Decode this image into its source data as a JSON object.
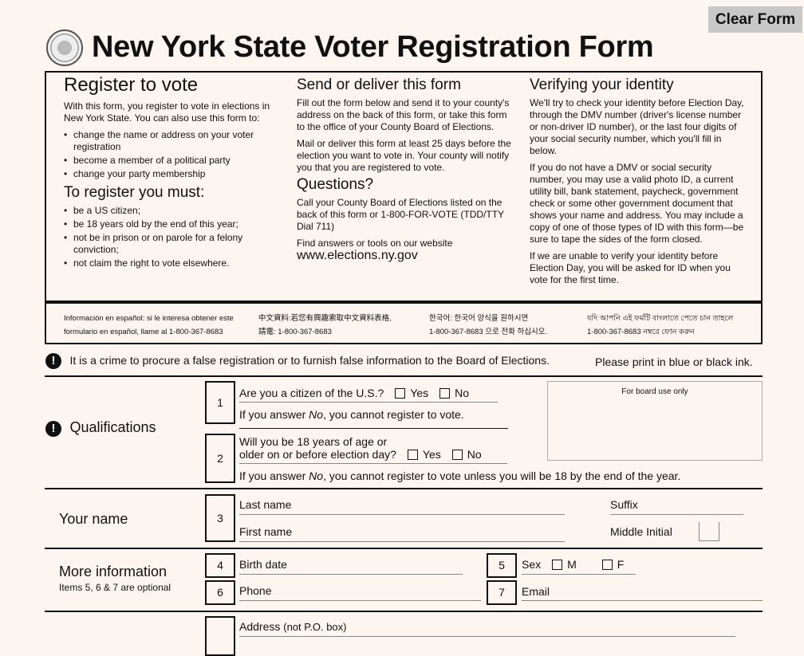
{
  "clear_form": "Clear Form",
  "title": "New York State Voter Registration Form",
  "col1": {
    "h": "Register to vote",
    "p": "With this form, you register to vote in elections in New York State. You can also use this form to:",
    "items": [
      "change the name or address on your voter registration",
      "become a member of a political party",
      "change your party membership"
    ],
    "h2": "To register you must:",
    "items2": [
      "be a US citizen;",
      "be 18 years old by the end of this year;",
      "not be in prison or on parole for a felony conviction;",
      "not claim the right to vote elsewhere."
    ]
  },
  "col2": {
    "h": "Send or deliver this form",
    "p1": "Fill out the form below and send it to your county's address on the back of this form, or take this form to the office of your County Board of Elections.",
    "p2": "Mail or deliver this form at least 25 days before the election you want to vote in. Your county will notify you that you are registered to vote.",
    "h2": "Questions?",
    "p3": "Call your County Board of Elections listed on the back of this form or 1-800-FOR-VOTE    (TDD/TTY Dial 711)",
    "p4": "Find answers or tools on our website",
    "web": "www.elections.ny.gov"
  },
  "col3": {
    "h": "Verifying your identity",
    "p1": "We'll try to check your identity before Election Day, through the DMV number (driver's license number or non-driver ID number), or the last four digits of your social security number, which you'll fill in below.",
    "p2": "If you do not have a DMV or social security number, you may use a valid photo ID, a current utility bill, bank statement, paycheck, government check or some other government document that shows your name and address. You may include a copy of one of those types of ID with this form—be sure to tape the sides of the form closed.",
    "p3": "If we are unable to verify your identity before Election Day, you will be asked for ID when you vote for the first time."
  },
  "lang": {
    "es1": "Información en español: si le interesa obtener este",
    "es2": "formulario en español, llame al 1-800-367-8683",
    "zh1": "中文資料:若您有興趣索取中文資料表格,",
    "zh2": "請電: 1-800-367-8683",
    "ko1": "한국어: 한국어 양식을 원하시면",
    "ko2": "1-800-367-8683 으로 전화 하십시오.",
    "bn1": "যদি আপনি এই ফর্মটি বাংলাতে পেতে চান তাহলে",
    "bn2": "1-800-367-8683 নম্বরে ফোন করুন"
  },
  "warning": "It is a crime to procure a false registration or to furnish false information to the Board of Elections.",
  "ink": "Please print in blue or black ink.",
  "qual": {
    "label": "Qualifications",
    "q1_num": "1",
    "q1": "Are you a citizen of the U.S.?",
    "q1_note_pre": "If you answer ",
    "q1_note_no": "No",
    "q1_note_post": ", you cannot register to vote.",
    "q2_num": "2",
    "q2a": "Will you be 18 years of age or",
    "q2b": "older on or before election day?",
    "q2_note_pre": "If you answer ",
    "q2_note_post": ", you cannot register to vote unless you will be 18 by the end of the year.",
    "yes": "Yes",
    "no": "No",
    "board": "For board use only"
  },
  "name": {
    "label": "Your name",
    "num": "3",
    "last": "Last name",
    "first": "First name",
    "suffix": "Suffix",
    "middle": "Middle Initial"
  },
  "more": {
    "label": "More information",
    "sub": "Items 5, 6 & 7 are optional",
    "n4": "4",
    "birth": "Birth date",
    "n5": "5",
    "sex": "Sex",
    "m": "M",
    "f": "F",
    "n6": "6",
    "phone": "Phone",
    "n7": "7",
    "email": "Email"
  },
  "address": {
    "label": "Address",
    "note": "(not P.O. box)"
  }
}
